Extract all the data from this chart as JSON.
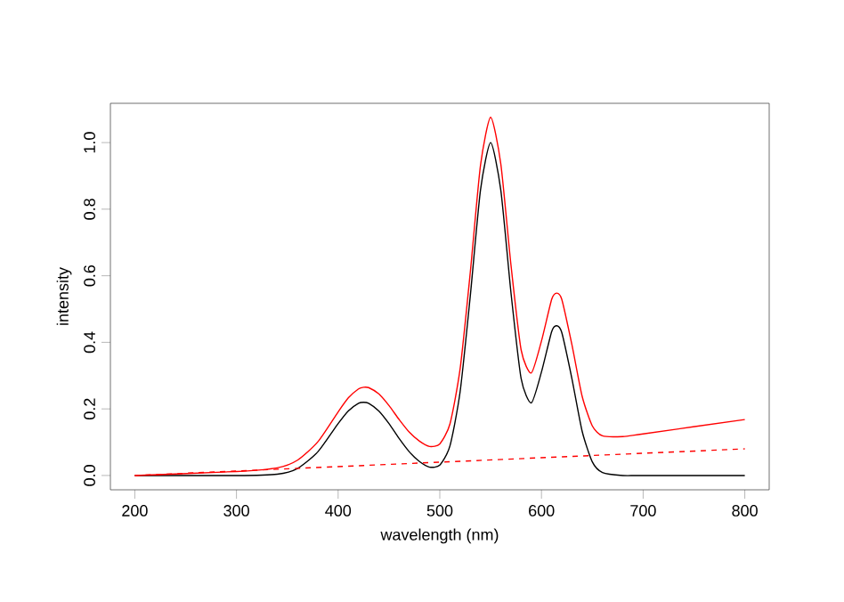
{
  "chart_data": {
    "type": "line",
    "xlabel": "wavelength (nm)",
    "ylabel": "intensity",
    "xlim": [
      176,
      824
    ],
    "ylim": [
      -0.043,
      1.118
    ],
    "xticks": [
      200,
      300,
      400,
      500,
      600,
      700,
      800
    ],
    "yticks": [
      {
        "value": 0,
        "label": "0.0"
      },
      {
        "value": 0.2,
        "label": "0.2"
      },
      {
        "value": 0.4,
        "label": "0.4"
      },
      {
        "value": 0.6,
        "label": "0.6"
      },
      {
        "value": 0.8,
        "label": "0.8"
      },
      {
        "value": 1,
        "label": "1.0"
      }
    ],
    "series": [
      {
        "color": "#000000",
        "line_style": "solid",
        "x": [
          200,
          300,
          340,
          360,
          380,
          400,
          410,
          420,
          425,
          430,
          440,
          450,
          460,
          470,
          480,
          490,
          500,
          510,
          520,
          530,
          540,
          550,
          560,
          570,
          580,
          590,
          600,
          610,
          615,
          620,
          630,
          640,
          650,
          660,
          680,
          700,
          800
        ],
        "values": [
          0,
          0,
          0.004,
          0.021,
          0.071,
          0.156,
          0.194,
          0.217,
          0.22,
          0.217,
          0.194,
          0.156,
          0.111,
          0.071,
          0.042,
          0.025,
          0.031,
          0.089,
          0.252,
          0.54,
          0.857,
          1.0,
          0.857,
          0.549,
          0.291,
          0.218,
          0.311,
          0.432,
          0.45,
          0.429,
          0.29,
          0.133,
          0.041,
          0.009,
          0,
          0,
          0
        ]
      },
      {
        "color": "#ff0000",
        "line_style": "solid",
        "x": [
          200,
          300,
          340,
          360,
          380,
          400,
          410,
          420,
          425,
          430,
          440,
          450,
          460,
          470,
          480,
          490,
          500,
          510,
          520,
          530,
          540,
          550,
          560,
          570,
          580,
          590,
          600,
          610,
          615,
          620,
          630,
          640,
          650,
          660,
          680,
          700,
          800
        ],
        "values": [
          0,
          0.012,
          0.023,
          0.046,
          0.101,
          0.191,
          0.233,
          0.26,
          0.265,
          0.264,
          0.245,
          0.21,
          0.168,
          0.13,
          0.103,
          0.087,
          0.095,
          0.155,
          0.321,
          0.611,
          0.931,
          1.076,
          0.936,
          0.632,
          0.377,
          0.308,
          0.404,
          0.529,
          0.548,
          0.529,
          0.392,
          0.238,
          0.149,
          0.119,
          0.117,
          0.125,
          0.168
        ]
      },
      {
        "color": "#ff0000",
        "line_style": "dashed",
        "x": [
          200,
          800
        ],
        "values": [
          0,
          0.08
        ]
      }
    ]
  }
}
